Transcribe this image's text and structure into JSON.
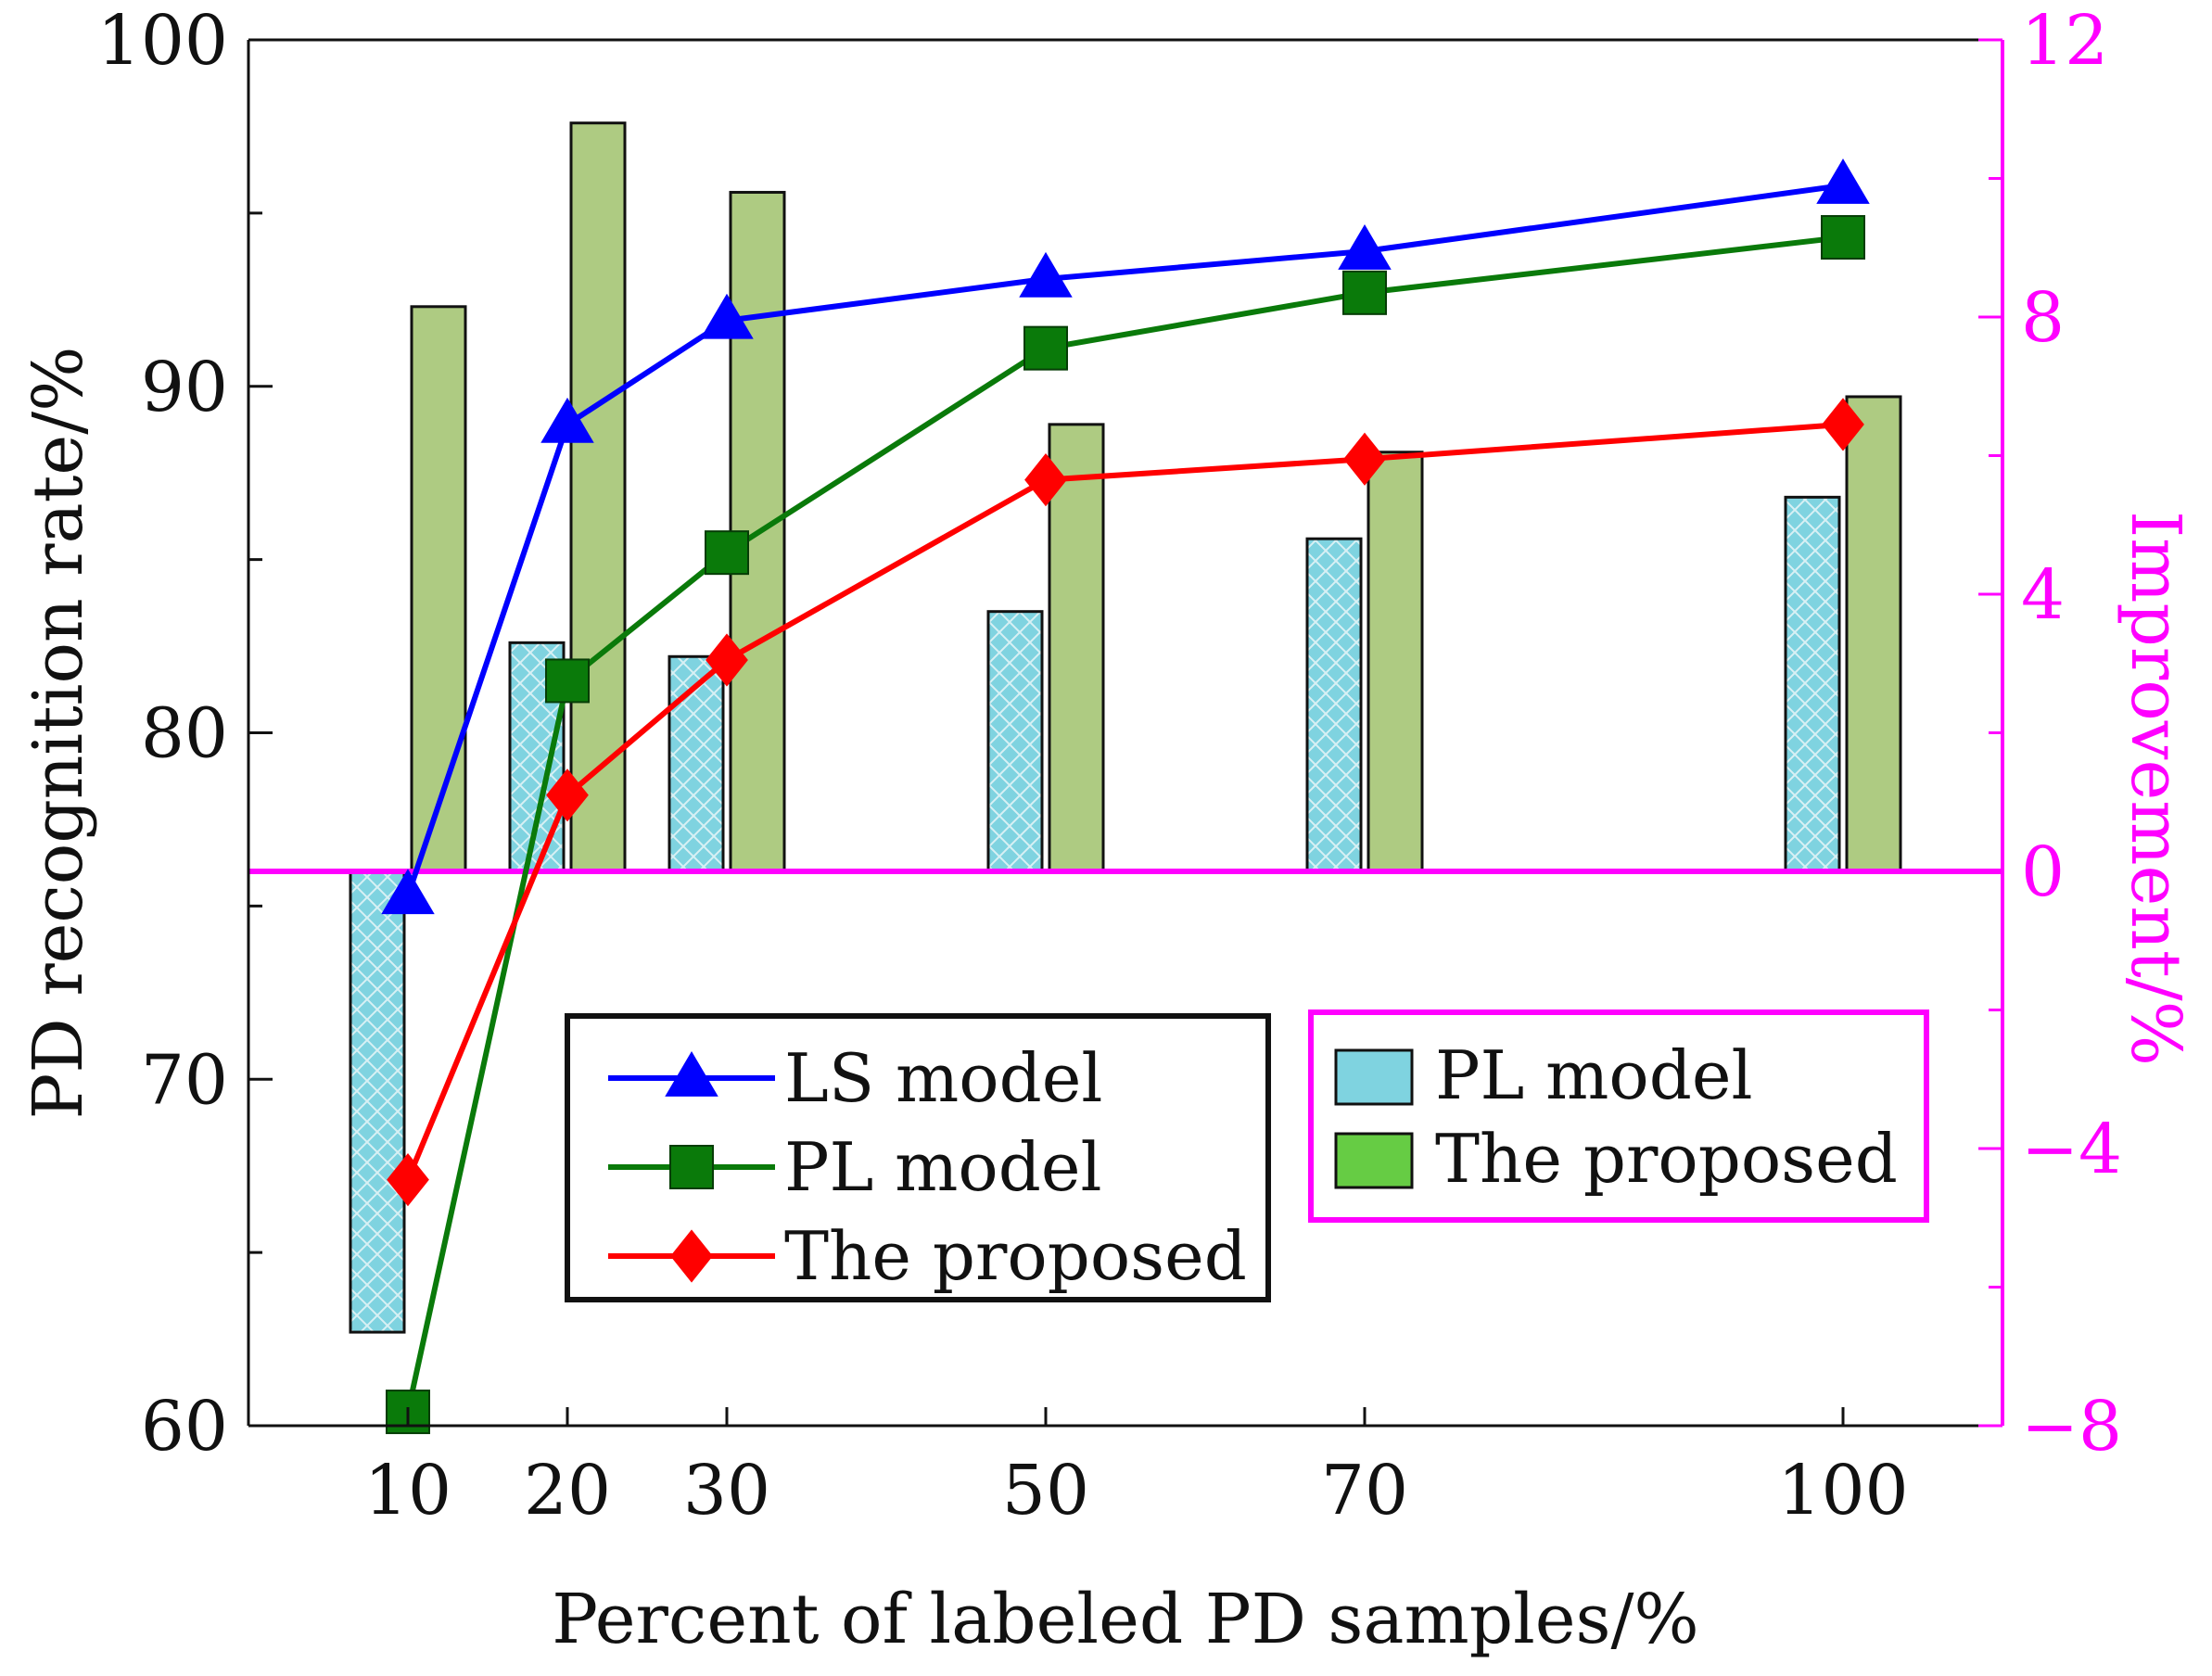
{
  "chart_data": {
    "type": "bar+line",
    "x": [
      10,
      20,
      30,
      50,
      70,
      100
    ],
    "x_tick_labels": [
      "10",
      "20",
      "30",
      "50",
      "70",
      "100"
    ],
    "xlabel": "Percent of labeled PD samples/%",
    "xlim": [
      0,
      110
    ],
    "ylabel_left": "PD recognition rate/%",
    "ylim_left": [
      60,
      100
    ],
    "y_ticks_left": [
      "60",
      "70",
      "80",
      "90",
      "100"
    ],
    "ylabel_right": "Improvement/%",
    "ylim_right": [
      -8,
      12
    ],
    "y_ticks_right": [
      "−8",
      "−4",
      "0",
      "4",
      "8",
      "12"
    ],
    "line_series": [
      {
        "name": "LS model",
        "color": "#0000ff",
        "marker": "triangle",
        "values": [
          75.3,
          88.9,
          91.9,
          93.1,
          93.9,
          95.8
        ]
      },
      {
        "name": "PL model",
        "color": "#0a7a0a",
        "marker": "square",
        "values": [
          60.4,
          81.5,
          85.2,
          91.1,
          92.7,
          94.3
        ]
      },
      {
        "name": "The proposed",
        "color": "#ff0000",
        "marker": "diamond",
        "values": [
          67.1,
          78.2,
          82.1,
          87.3,
          87.9,
          88.9
        ]
      }
    ],
    "bar_series": [
      {
        "name": "PL model",
        "color": "#7fd3e0",
        "legend_color": "#7fd3e0",
        "values": [
          -6.65,
          3.3,
          3.1,
          3.75,
          4.8,
          5.4
        ]
      },
      {
        "name": "The proposed",
        "color": "#aecb82",
        "legend_color": "#66cc44",
        "values": [
          8.15,
          10.8,
          9.8,
          6.45,
          6.05,
          6.85
        ]
      }
    ],
    "legend_left_title_color": "#111111",
    "legend_right_border_color": "#ff00ff",
    "right_axis_color": "#ff00ff"
  }
}
